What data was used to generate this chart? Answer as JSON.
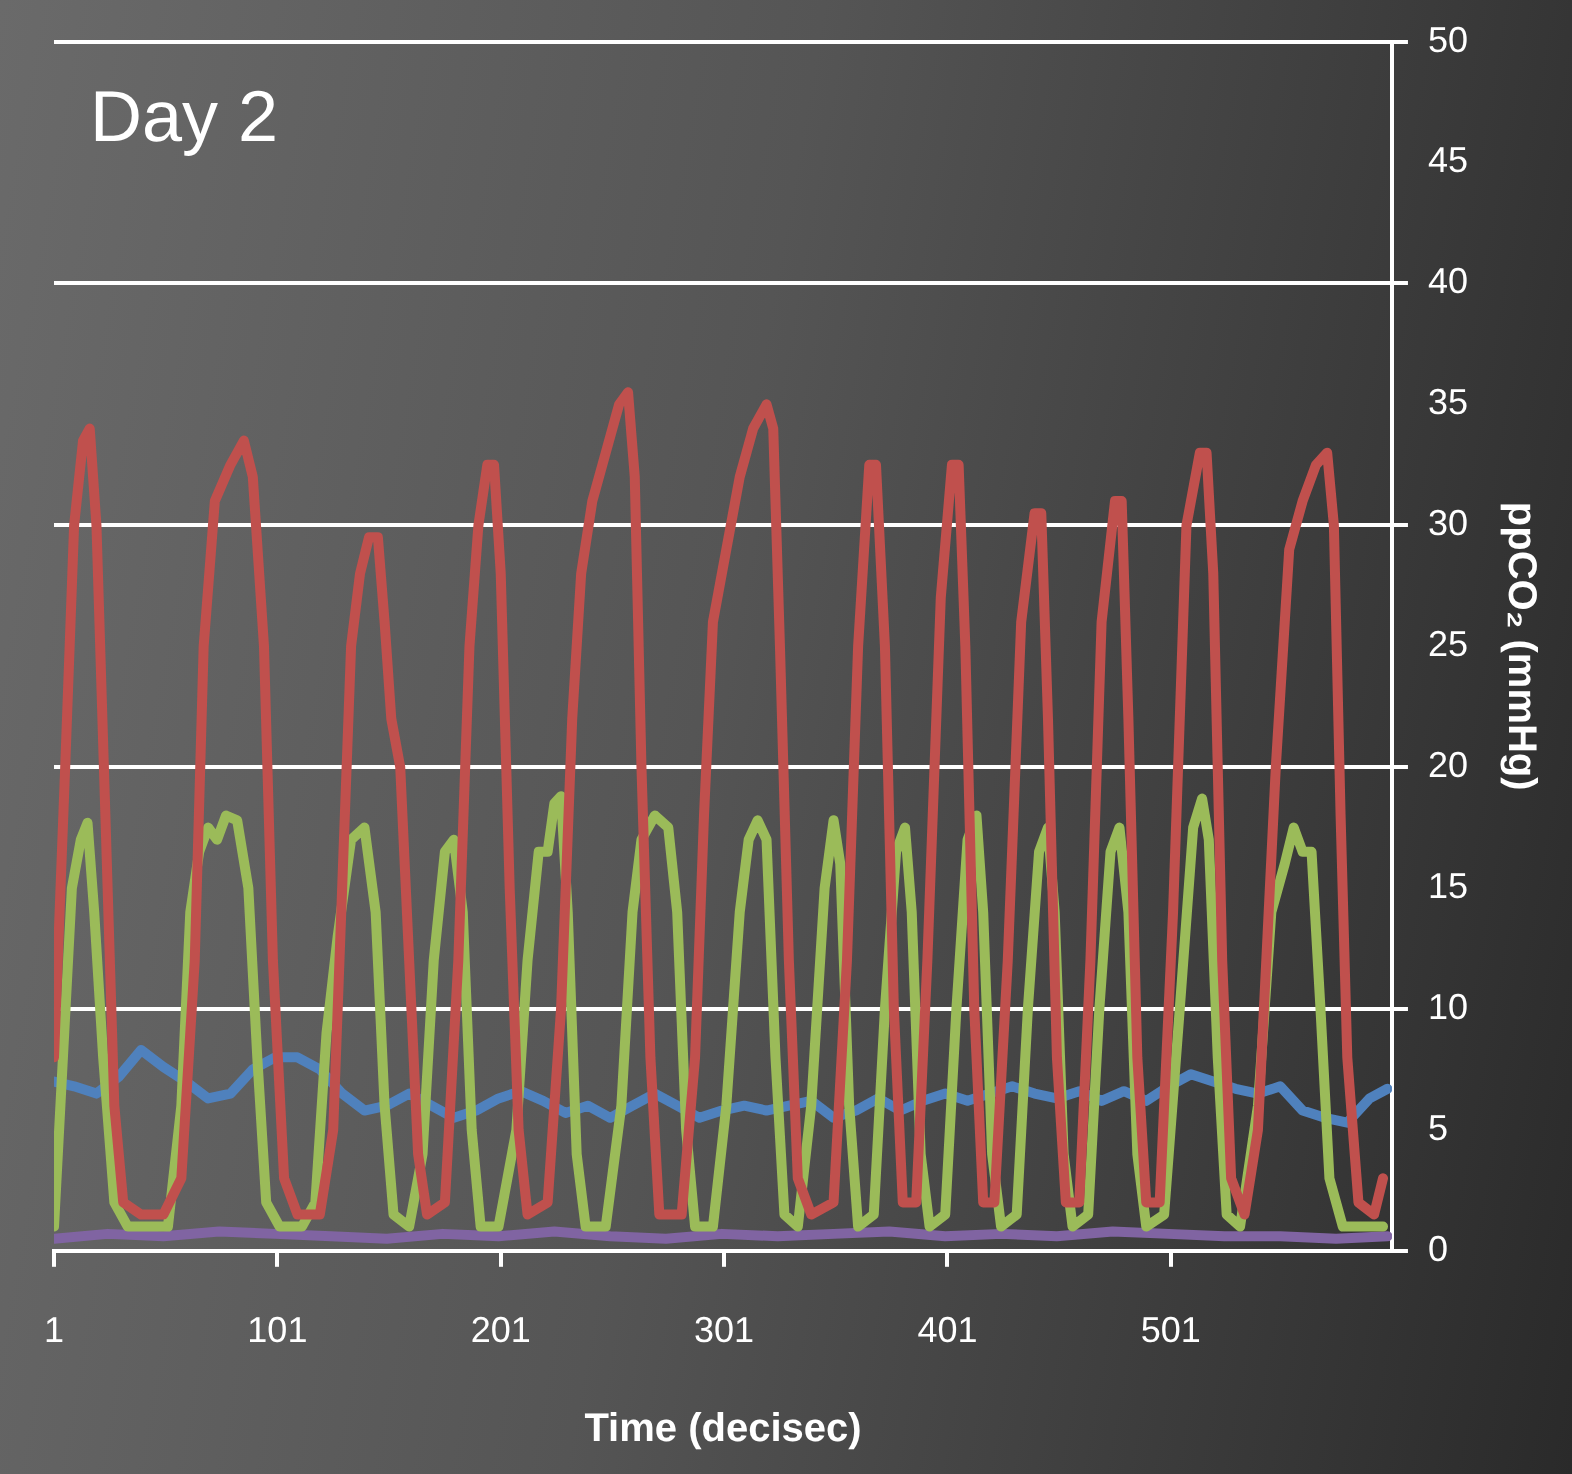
{
  "chart_data": {
    "type": "line",
    "title": "Day 2",
    "xlabel": "Time (decisec)",
    "ylabel": "ppCO₂ (mmHg)",
    "xlim": [
      1,
      600
    ],
    "xticks": [
      1,
      101,
      201,
      301,
      401,
      501
    ],
    "ylim": [
      0,
      50
    ],
    "yticks": [
      0,
      5,
      10,
      15,
      20,
      25,
      30,
      35,
      40,
      45,
      50
    ],
    "grid": "y",
    "legend": false,
    "marker": "none",
    "line_style": "solid",
    "series": [
      {
        "color": "#c0504d",
        "x": [
          1,
          6,
          10,
          14,
          17,
          20,
          24,
          28,
          32,
          40,
          50,
          58,
          64,
          68,
          73,
          80,
          86,
          90,
          95,
          99,
          104,
          110,
          120,
          126,
          130,
          134,
          138,
          142,
          146,
          149,
          152,
          156,
          160,
          164,
          168,
          176,
          182,
          187,
          191,
          195,
          198,
          201,
          205,
          209,
          213,
          222,
          228,
          233,
          237,
          242,
          248,
          254,
          258,
          261,
          264,
          268,
          272,
          282,
          288,
          292,
          296,
          302,
          308,
          314,
          320,
          323,
          326,
          330,
          334,
          340,
          350,
          356,
          361,
          366,
          369,
          373,
          377,
          381,
          387,
          392,
          398,
          403,
          406,
          409,
          413,
          417,
          422,
          428,
          434,
          440,
          443,
          446,
          450,
          454,
          460,
          465,
          470,
          476,
          479,
          482,
          486,
          490,
          496,
          502,
          508,
          514,
          517,
          520,
          524,
          528,
          534,
          540,
          548,
          554,
          560,
          566,
          571,
          574,
          577,
          580,
          585,
          592,
          596
        ],
        "values": [
          8,
          20,
          30,
          33.5,
          34,
          30,
          18,
          6,
          2,
          1.5,
          1.5,
          3,
          12,
          25,
          31,
          32.5,
          33.5,
          32,
          25,
          12,
          3,
          1.5,
          1.5,
          5,
          15,
          25,
          28,
          29.5,
          29.5,
          26,
          22,
          20,
          12,
          4,
          1.5,
          2,
          12,
          25,
          30,
          32.5,
          32.5,
          28,
          15,
          5,
          1.5,
          2,
          10,
          22,
          28,
          31,
          33,
          35,
          35.5,
          32,
          20,
          8,
          1.5,
          1.5,
          8,
          18,
          26,
          29,
          32,
          34,
          35,
          34,
          25,
          12,
          3,
          1.5,
          2,
          12,
          25,
          32.5,
          32.5,
          25,
          10,
          2,
          2,
          12,
          27,
          32.5,
          32.5,
          25,
          10,
          2,
          2,
          12,
          26,
          30.5,
          30.5,
          22,
          8,
          2,
          2,
          12,
          26,
          31,
          31,
          22,
          8,
          2,
          2,
          14,
          30,
          33,
          33,
          28,
          12,
          3,
          1.5,
          5,
          20,
          29,
          31,
          32.5,
          33,
          30,
          18,
          8,
          2,
          1.5,
          3
        ]
      },
      {
        "color": "#9bbb59",
        "x": [
          1,
          5,
          9,
          13,
          16,
          19,
          23,
          28,
          34,
          44,
          52,
          58,
          62,
          66,
          70,
          74,
          78,
          83,
          88,
          92,
          96,
          102,
          112,
          118,
          123,
          128,
          134,
          140,
          145,
          149,
          153,
          160,
          166,
          171,
          176,
          180,
          184,
          188,
          192,
          200,
          208,
          213,
          218,
          222,
          225,
          228,
          231,
          235,
          239,
          248,
          255,
          260,
          264,
          270,
          276,
          280,
          284,
          288,
          296,
          302,
          308,
          312,
          316,
          320,
          324,
          328,
          334,
          340,
          346,
          350,
          353,
          357,
          361,
          368,
          373,
          378,
          382,
          385,
          389,
          393,
          400,
          405,
          410,
          414,
          417,
          421,
          425,
          432,
          437,
          442,
          446,
          449,
          453,
          457,
          464,
          469,
          474,
          478,
          482,
          486,
          490,
          498,
          505,
          511,
          515,
          518,
          522,
          526,
          532,
          540,
          546,
          552,
          556,
          560,
          564,
          568,
          572,
          578,
          590,
          596
        ],
        "values": [
          1,
          8,
          15,
          17,
          17.7,
          14,
          8,
          2,
          1,
          1,
          1,
          6,
          14,
          16.5,
          17.5,
          17,
          18,
          17.8,
          15,
          8,
          2,
          1,
          1,
          2,
          9,
          13,
          17,
          17.5,
          14,
          6,
          1.5,
          1,
          4,
          12,
          16.5,
          17,
          14,
          5,
          1,
          1,
          5,
          12,
          16.5,
          16.5,
          18.5,
          18.8,
          14,
          4,
          1,
          1,
          6,
          14,
          17,
          18,
          17.5,
          14,
          5,
          1,
          1,
          6,
          14,
          17,
          17.8,
          17,
          8,
          1.5,
          1,
          6,
          15,
          17.8,
          16,
          6,
          1,
          1.5,
          10,
          16.5,
          17.5,
          14,
          4,
          1,
          1.5,
          10,
          17,
          18,
          14,
          4,
          1,
          1.5,
          10,
          16.5,
          17.5,
          14,
          4,
          1,
          1.5,
          10,
          16.5,
          17.5,
          14,
          4,
          1,
          1.5,
          10,
          17.5,
          18.7,
          17,
          8,
          1.5,
          1,
          6,
          14,
          16,
          17.5,
          16.5,
          16.5,
          10,
          3,
          1,
          1,
          1
        ]
      },
      {
        "color": "#4f81bd",
        "x": [
          1,
          10,
          20,
          30,
          40,
          50,
          60,
          70,
          80,
          90,
          100,
          110,
          120,
          130,
          140,
          150,
          160,
          170,
          180,
          190,
          200,
          210,
          220,
          230,
          240,
          250,
          260,
          270,
          280,
          290,
          300,
          310,
          320,
          330,
          340,
          350,
          360,
          370,
          380,
          390,
          400,
          410,
          420,
          430,
          440,
          450,
          460,
          470,
          480,
          490,
          500,
          510,
          520,
          530,
          540,
          550,
          560,
          570,
          580,
          590,
          598
        ],
        "values": [
          7,
          6.8,
          6.5,
          7.2,
          8.3,
          7.6,
          7,
          6.3,
          6.5,
          7.5,
          8,
          8,
          7.5,
          6.5,
          5.8,
          6,
          6.5,
          6,
          5.5,
          5.8,
          6.3,
          6.6,
          6.2,
          5.7,
          6,
          5.5,
          6,
          6.5,
          6,
          5.5,
          5.8,
          6,
          5.8,
          6,
          6.2,
          5.5,
          5.8,
          6.3,
          5.8,
          6.2,
          6.5,
          6.2,
          6.5,
          6.8,
          6.5,
          6.3,
          6.6,
          6.2,
          6.6,
          6.2,
          6.8,
          7.3,
          7,
          6.7,
          6.5,
          6.8,
          5.8,
          5.5,
          5.3,
          6.3,
          6.7
        ]
      },
      {
        "color": "#8064a2",
        "x": [
          1,
          25,
          50,
          75,
          100,
          125,
          150,
          175,
          200,
          225,
          250,
          275,
          300,
          325,
          350,
          375,
          400,
          425,
          450,
          475,
          500,
          525,
          550,
          575,
          598
        ],
        "values": [
          0.5,
          0.7,
          0.6,
          0.8,
          0.7,
          0.6,
          0.5,
          0.7,
          0.6,
          0.8,
          0.6,
          0.5,
          0.7,
          0.6,
          0.7,
          0.8,
          0.6,
          0.7,
          0.6,
          0.8,
          0.7,
          0.6,
          0.6,
          0.5,
          0.6
        ]
      }
    ]
  }
}
